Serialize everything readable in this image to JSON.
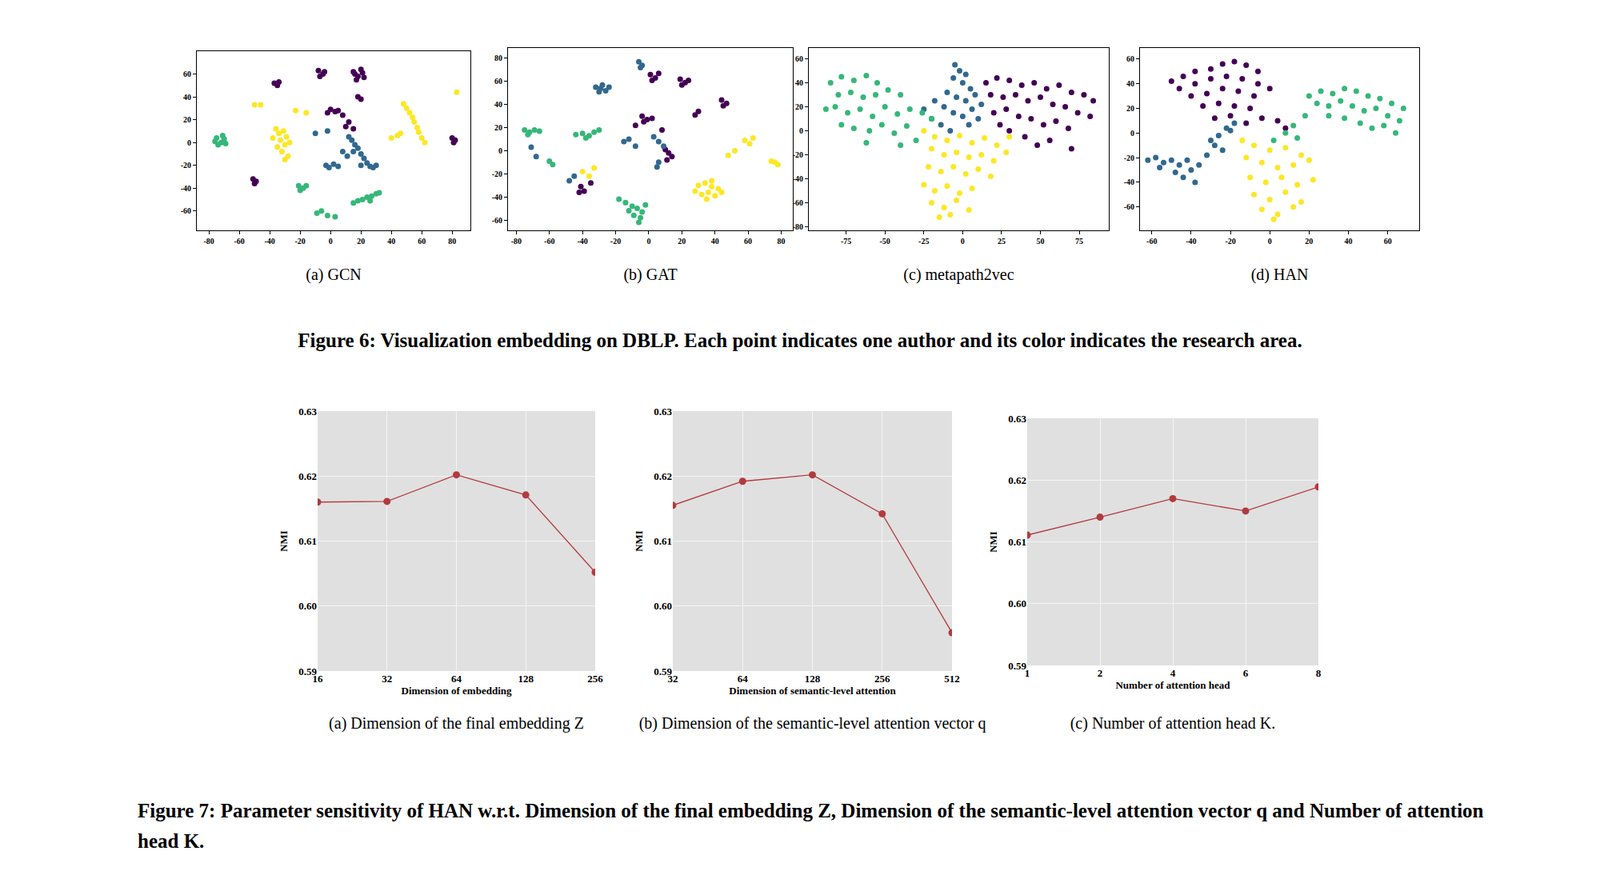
{
  "chart_data": [
    {
      "type": "scatter",
      "title": "(a) GCN",
      "xlim": [
        -88,
        92
      ],
      "xticks": [
        -80,
        -60,
        -40,
        -20,
        0,
        20,
        40,
        60,
        80
      ],
      "ylim": [
        -77,
        80
      ],
      "yticks": [
        -60,
        -40,
        -20,
        0,
        20,
        40,
        60
      ],
      "grid": false,
      "series": [
        {
          "color": "#440154",
          "x": [
            15,
            18,
            21,
            17,
            22,
            20,
            16,
            -8,
            -5,
            -7,
            -4,
            -37,
            -35,
            -34,
            0,
            3,
            -2,
            5,
            8,
            12,
            10,
            15,
            80,
            82,
            81,
            -51,
            -49,
            -50,
            18,
            20
          ],
          "y": [
            62,
            58,
            61,
            55,
            57,
            64,
            60,
            63,
            60,
            58,
            62,
            52,
            50,
            53,
            29,
            27,
            26,
            28,
            24,
            18,
            14,
            12,
            4,
            2,
            0,
            -32,
            -34,
            -36,
            40,
            38
          ]
        },
        {
          "color": "#31688e",
          "x": [
            12,
            14,
            16,
            18,
            15,
            20,
            22,
            24,
            26,
            20,
            -3,
            -1,
            2,
            5,
            8,
            11,
            28,
            30,
            -10,
            -2
          ],
          "y": [
            5,
            2,
            -2,
            -5,
            -8,
            -10,
            -14,
            -18,
            -21,
            -20,
            -20,
            -22,
            -19,
            -21,
            -8,
            -12,
            -22,
            -20,
            8,
            10
          ]
        },
        {
          "color": "#35b779",
          "x": [
            -75,
            -72,
            -70,
            -74,
            -71,
            -76,
            -69,
            -21,
            -18,
            -16,
            -20,
            15,
            18,
            21,
            24,
            27,
            30,
            32,
            26,
            -9,
            -6,
            -2,
            3
          ],
          "y": [
            4,
            0,
            3,
            -2,
            6,
            1,
            -1,
            -38,
            -40,
            -38,
            -42,
            -53,
            -51,
            -50,
            -48,
            -47,
            -45,
            -44,
            -51,
            -62,
            -60,
            -64,
            -65
          ]
        },
        {
          "color": "#fde725",
          "x": [
            -36,
            -34,
            -31,
            -29,
            -33,
            -30,
            -35,
            -32,
            -28,
            -30,
            -27,
            -38,
            48,
            50,
            52,
            54,
            55,
            57,
            58,
            60,
            62,
            44,
            46,
            40,
            -50,
            -46,
            -23,
            -16,
            83
          ],
          "y": [
            12,
            8,
            10,
            5,
            2,
            -2,
            -4,
            -8,
            -12,
            -15,
            0,
            4,
            34,
            30,
            26,
            22,
            18,
            13,
            9,
            4,
            0,
            6,
            8,
            4,
            33,
            33,
            28,
            26,
            44
          ]
        }
      ]
    },
    {
      "type": "scatter",
      "title": "(b) GAT",
      "xlim": [
        -85,
        87
      ],
      "xticks": [
        -80,
        -60,
        -40,
        -20,
        0,
        20,
        40,
        60,
        80
      ],
      "ylim": [
        -69,
        89
      ],
      "yticks": [
        -60,
        -40,
        -20,
        0,
        20,
        40,
        60,
        80
      ],
      "grid": false,
      "series": [
        {
          "color": "#440154",
          "x": [
            1,
            4,
            6,
            2,
            19,
            22,
            20,
            24,
            44,
            47,
            45,
            -4,
            -1,
            -3,
            2,
            10,
            12,
            14,
            11,
            -41,
            -39,
            -42,
            -35,
            30,
            28,
            8,
            -8
          ],
          "y": [
            66,
            63,
            67,
            61,
            62,
            59,
            57,
            61,
            44,
            41,
            39,
            30,
            27,
            25,
            28,
            1,
            -2,
            -5,
            -8,
            -31,
            -35,
            -36,
            -28,
            34,
            31,
            18,
            22
          ]
        },
        {
          "color": "#31688e",
          "x": [
            -6,
            -4,
            -5,
            -32,
            -29,
            -26,
            -24,
            -30,
            -28,
            -71,
            -68,
            -15,
            -12,
            -8,
            6,
            9,
            3,
            6,
            5,
            -45,
            -48
          ],
          "y": [
            77,
            74,
            72,
            55,
            54,
            52,
            55,
            51,
            57,
            3,
            -5,
            8,
            10,
            4,
            8,
            4,
            12,
            -10,
            -14,
            -22,
            -26
          ]
        },
        {
          "color": "#35b779",
          "x": [
            -75,
            -72,
            -69,
            -66,
            -73,
            -44,
            -40,
            -36,
            -33,
            -38,
            -30,
            -60,
            -58,
            -10,
            -7,
            -4,
            -9,
            -5,
            -12,
            -2,
            -14,
            -6,
            -18
          ],
          "y": [
            18,
            16,
            18,
            17,
            14,
            14,
            15,
            13,
            16,
            11,
            18,
            -9,
            -12,
            -48,
            -50,
            -53,
            -56,
            -58,
            -52,
            -47,
            -45,
            -62,
            -42
          ]
        },
        {
          "color": "#fde725",
          "x": [
            30,
            34,
            38,
            42,
            36,
            32,
            40,
            44,
            28,
            35,
            38,
            58,
            61,
            63,
            52,
            48,
            -40,
            -36,
            -33,
            76,
            78,
            74
          ],
          "y": [
            -30,
            -28,
            -31,
            -33,
            -36,
            -38,
            -39,
            -36,
            -35,
            -42,
            -26,
            9,
            6,
            11,
            0,
            -4,
            -18,
            -22,
            -15,
            -10,
            -12,
            -9
          ]
        }
      ]
    },
    {
      "type": "scatter",
      "title": "(c) metapath2vec",
      "xlim": [
        -99,
        94
      ],
      "xticks": [
        -75,
        -50,
        -25,
        0,
        25,
        50,
        75
      ],
      "ylim": [
        -83,
        69
      ],
      "yticks": [
        -80,
        -60,
        -40,
        -20,
        0,
        20,
        40,
        60
      ],
      "grid": false,
      "series": [
        {
          "color": "#440154",
          "x": [
            15,
            22,
            30,
            38,
            46,
            54,
            62,
            70,
            78,
            84,
            18,
            26,
            34,
            42,
            50,
            58,
            66,
            74,
            82,
            20,
            28,
            36,
            44,
            52,
            60,
            68,
            40,
            30,
            48,
            56,
            24,
            70
          ],
          "y": [
            40,
            44,
            42,
            38,
            40,
            35,
            38,
            32,
            30,
            25,
            30,
            28,
            30,
            25,
            28,
            22,
            20,
            15,
            12,
            15,
            18,
            12,
            10,
            5,
            8,
            2,
            -5,
            0,
            -12,
            -8,
            5,
            -15
          ]
        },
        {
          "color": "#31688e",
          "x": [
            -5,
            -2,
            2,
            -6,
            0,
            5,
            -10,
            -4,
            2,
            8,
            12,
            -18,
            -12,
            -6,
            0,
            6,
            -20,
            -14,
            -25,
            4,
            -8,
            10
          ],
          "y": [
            55,
            50,
            47,
            44,
            40,
            35,
            32,
            28,
            25,
            30,
            22,
            25,
            20,
            15,
            12,
            18,
            10,
            5,
            18,
            5,
            0,
            10
          ]
        },
        {
          "color": "#35b779",
          "x": [
            -85,
            -78,
            -70,
            -62,
            -55,
            -80,
            -72,
            -64,
            -56,
            -48,
            -40,
            -88,
            -82,
            -74,
            -66,
            -58,
            -50,
            -42,
            -34,
            -26,
            -78,
            -70,
            -60,
            -52,
            -44,
            -36,
            -30,
            -40,
            -62,
            -20
          ],
          "y": [
            40,
            45,
            42,
            46,
            40,
            30,
            32,
            28,
            30,
            34,
            30,
            18,
            20,
            15,
            18,
            12,
            20,
            14,
            18,
            15,
            5,
            2,
            0,
            5,
            -2,
            4,
            -8,
            -12,
            -10,
            10
          ]
        },
        {
          "color": "#fde725",
          "x": [
            -25,
            -18,
            -10,
            -2,
            6,
            14,
            22,
            30,
            -20,
            -12,
            -4,
            4,
            12,
            20,
            28,
            -22,
            -14,
            -6,
            2,
            10,
            18,
            -25,
            -18,
            -10,
            -2,
            6,
            -20,
            -12,
            -4,
            4,
            -15,
            -8
          ],
          "y": [
            0,
            -5,
            -8,
            -4,
            -10,
            -6,
            -12,
            -5,
            -15,
            -20,
            -18,
            -22,
            -20,
            -25,
            -18,
            -30,
            -34,
            -30,
            -36,
            -32,
            -38,
            -45,
            -50,
            -46,
            -52,
            -48,
            -60,
            -64,
            -58,
            -66,
            -72,
            -70
          ]
        }
      ]
    },
    {
      "type": "scatter",
      "title": "(d) HAN",
      "xlim": [
        -66,
        76
      ],
      "xticks": [
        -60,
        -40,
        -20,
        0,
        20,
        40,
        60
      ],
      "ylim": [
        -79,
        69
      ],
      "yticks": [
        -60,
        -40,
        -20,
        0,
        20,
        40,
        60
      ],
      "grid": false,
      "series": [
        {
          "color": "#440154",
          "x": [
            -50,
            -44,
            -38,
            -30,
            -24,
            -18,
            -12,
            -6,
            -46,
            -38,
            -30,
            -22,
            -14,
            -6,
            0,
            -40,
            -32,
            -24,
            -16,
            -8,
            -34,
            -26,
            -18,
            -10,
            -28,
            -20,
            -12,
            -4,
            4,
            8
          ],
          "y": [
            42,
            46,
            50,
            52,
            56,
            58,
            55,
            50,
            36,
            40,
            44,
            46,
            44,
            40,
            36,
            30,
            32,
            36,
            34,
            30,
            22,
            24,
            22,
            20,
            12,
            14,
            8,
            12,
            10,
            4
          ]
        },
        {
          "color": "#31688e",
          "x": [
            -62,
            -58,
            -54,
            -50,
            -46,
            -42,
            -56,
            -48,
            -44,
            -40,
            -38,
            -36,
            -32,
            -28,
            -26,
            -22,
            -30,
            -24,
            -20,
            -18
          ],
          "y": [
            -22,
            -20,
            -24,
            -22,
            -26,
            -22,
            -28,
            -32,
            -36,
            -30,
            -40,
            -26,
            -18,
            -10,
            -2,
            4,
            -6,
            -14,
            2,
            8
          ]
        },
        {
          "color": "#35b779",
          "x": [
            20,
            26,
            32,
            38,
            44,
            50,
            56,
            62,
            68,
            24,
            30,
            36,
            42,
            48,
            54,
            60,
            66,
            30,
            38,
            46,
            52,
            58,
            64,
            18,
            12,
            8,
            2,
            14
          ],
          "y": [
            30,
            34,
            32,
            36,
            34,
            30,
            28,
            24,
            20,
            24,
            22,
            26,
            22,
            18,
            20,
            14,
            10,
            14,
            12,
            8,
            4,
            6,
            0,
            14,
            6,
            0,
            -6,
            -4
          ]
        },
        {
          "color": "#fde725",
          "x": [
            -8,
            0,
            8,
            16,
            -4,
            4,
            12,
            20,
            -10,
            -2,
            6,
            14,
            22,
            -8,
            0,
            8,
            16,
            -4,
            4,
            12,
            2,
            -12,
            -14
          ],
          "y": [
            -10,
            -14,
            -12,
            -18,
            -24,
            -28,
            -26,
            -22,
            -36,
            -40,
            -36,
            -42,
            -38,
            -50,
            -54,
            -48,
            -56,
            -62,
            -66,
            -60,
            -70,
            -20,
            -6
          ]
        }
      ]
    },
    {
      "type": "line",
      "title": "(a) Dimension of the final embedding Z",
      "x_label": "Dimension of embedding",
      "y_label": "NMI",
      "log": "x",
      "x": [
        16,
        32,
        64,
        128,
        256
      ],
      "values": [
        0.616,
        0.6161,
        0.6202,
        0.6171,
        0.6052
      ],
      "xlim": [
        16,
        256
      ],
      "xticks": [
        16,
        32,
        64,
        128,
        256
      ],
      "ylim": [
        0.59,
        0.63
      ],
      "yticks": [
        0.59,
        {
          "value": 0.6,
          "label": "0.60"
        },
        0.61,
        0.62,
        0.63
      ],
      "color": "#b23a3f",
      "marker": "circle",
      "line_style": "solid",
      "grid": true
    },
    {
      "type": "line",
      "title": "(b) Dimension of the semantic-level attention vector q",
      "x_label": "Dimension of semantic-level attention",
      "y_label": "NMI",
      "log": "x",
      "x": [
        32,
        64,
        128,
        256,
        512
      ],
      "values": [
        0.6155,
        0.6192,
        0.6202,
        0.6142,
        0.5959
      ],
      "xlim": [
        32,
        512
      ],
      "xticks": [
        32,
        64,
        128,
        256,
        512
      ],
      "ylim": [
        0.59,
        0.63
      ],
      "yticks": [
        0.59,
        {
          "value": 0.6,
          "label": "0.60"
        },
        0.61,
        0.62,
        0.63
      ],
      "color": "#b23a3f",
      "marker": "circle",
      "line_style": "solid",
      "grid": true
    },
    {
      "type": "line",
      "title": "(c) Number of attention head K.",
      "x_label": "Number of attention head",
      "y_label": "NMI",
      "categories": [
        "1",
        "2",
        "4",
        "6",
        "8"
      ],
      "values": [
        0.6111,
        0.614,
        0.617,
        0.615,
        0.6189
      ],
      "ylim": [
        0.59,
        0.63
      ],
      "yticks": [
        0.59,
        {
          "value": 0.6,
          "label": "0.60"
        },
        0.61,
        0.62,
        0.63
      ],
      "color": "#b23a3f",
      "marker": "circle",
      "line_style": "solid",
      "grid": true
    }
  ],
  "figure_captions": [
    "Figure 6: Visualization embedding on DBLP. Each point indicates one author and its color indicates the research area.",
    "Figure 7: Parameter sensitivity of HAN w.r.t. Dimension of the final embedding Z, Dimension of the semantic-level attention vector q and Number of attention head K."
  ]
}
